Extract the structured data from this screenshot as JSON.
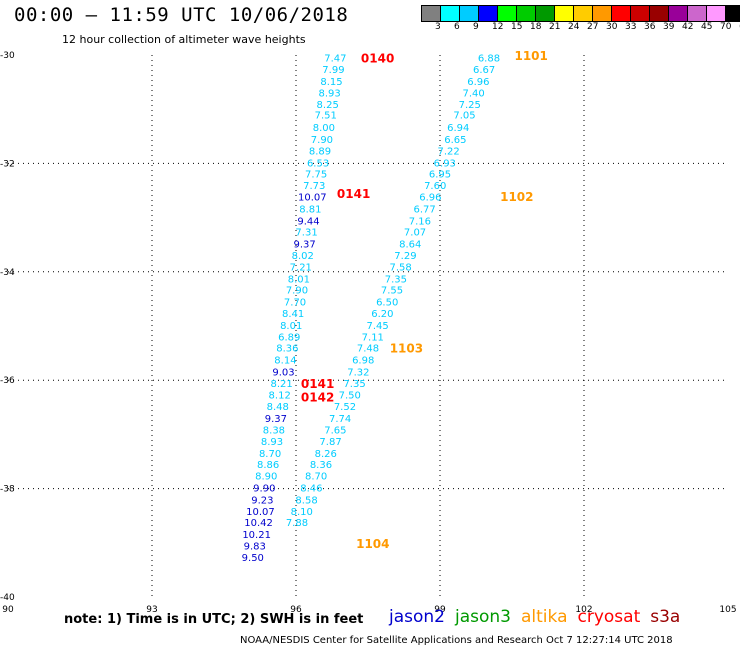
{
  "title": "00:00 – 11:59 UTC 10/06/2018",
  "subtitle": "12 hour collection of altimeter wave heights",
  "legend": {
    "colors": [
      "#808080",
      "#00ffff",
      "#00ccff",
      "#0000ff",
      "#00ff00",
      "#00cc00",
      "#009900",
      "#ffff00",
      "#ffcc00",
      "#ff9900",
      "#ff0000",
      "#cc0000",
      "#990000",
      "#990099",
      "#cc66cc",
      "#ff99ff",
      "#000000"
    ],
    "labels": [
      "3",
      "6",
      "9",
      "12",
      "15",
      "18",
      "21",
      "24",
      "27",
      "30",
      "33",
      "36",
      "39",
      "42",
      "45",
      "70",
      "(ft)"
    ]
  },
  "note": "note:  1) Time is in UTC;  2) SWH is in feet",
  "satellites": [
    {
      "name": "jason2",
      "color": "#0000cc"
    },
    {
      "name": "jason3",
      "color": "#009900"
    },
    {
      "name": "altika",
      "color": "#ff9900"
    },
    {
      "name": "cryosat",
      "color": "#ff0000"
    },
    {
      "name": "s3a",
      "color": "#990000"
    }
  ],
  "credit": "NOAA/NESDIS Center for Satellite Applications and Research    Oct  7 12:27:14 UTC 2018",
  "chart_data": {
    "type": "scatter",
    "xlim": [
      90,
      105
    ],
    "ylim": [
      -40,
      -30
    ],
    "xticks": [
      "90",
      "93",
      "96",
      "99",
      "102",
      "105"
    ],
    "yticks": [
      "-30",
      "-32",
      "-34",
      "-36",
      "-38",
      "-40"
    ],
    "grid": true,
    "colors": {
      "light_swh": "#00ccff",
      "dark_swh": "#0000cc",
      "altika_time": "#ff9900",
      "cryosat_time": "#ff0000"
    },
    "tracks": [
      {
        "name": "track-1",
        "color_key": "light_swh",
        "points": [
          {
            "lon": 100.02,
            "lat": -30.05,
            "swh": "6.88"
          },
          {
            "lon": 99.92,
            "lat": -30.26,
            "swh": "6.67"
          },
          {
            "lon": 99.8,
            "lat": -30.48,
            "swh": "6.96"
          },
          {
            "lon": 99.7,
            "lat": -30.69,
            "swh": "7.40"
          },
          {
            "lon": 99.62,
            "lat": -30.9,
            "swh": "7.25"
          },
          {
            "lon": 99.51,
            "lat": -31.1,
            "swh": "7.05"
          },
          {
            "lon": 99.38,
            "lat": -31.33,
            "swh": "6.94"
          },
          {
            "lon": 99.32,
            "lat": -31.55,
            "swh": "6.65"
          },
          {
            "lon": 99.18,
            "lat": -31.76,
            "swh": "7.22"
          },
          {
            "lon": 99.1,
            "lat": -31.98,
            "swh": "6.93"
          },
          {
            "lon": 99.0,
            "lat": -32.19,
            "swh": "6.95"
          },
          {
            "lon": 98.9,
            "lat": -32.4,
            "swh": "7.60"
          },
          {
            "lon": 98.8,
            "lat": -32.61,
            "swh": "6.96"
          },
          {
            "lon": 98.68,
            "lat": -32.83,
            "swh": "6.77"
          },
          {
            "lon": 98.58,
            "lat": -33.05,
            "swh": "7.16"
          },
          {
            "lon": 98.48,
            "lat": -33.26,
            "swh": "7.07"
          },
          {
            "lon": 98.38,
            "lat": -33.48,
            "swh": "8.64"
          },
          {
            "lon": 98.28,
            "lat": -33.69,
            "swh": "7.29"
          },
          {
            "lon": 98.18,
            "lat": -33.9,
            "swh": "7.58"
          },
          {
            "lon": 98.08,
            "lat": -34.12,
            "swh": "7.35"
          },
          {
            "lon": 98.0,
            "lat": -34.33,
            "swh": "7.55"
          },
          {
            "lon": 97.9,
            "lat": -34.55,
            "swh": "6.50"
          },
          {
            "lon": 97.8,
            "lat": -34.76,
            "swh": "6.20"
          },
          {
            "lon": 97.7,
            "lat": -34.98,
            "swh": "7.45"
          },
          {
            "lon": 97.6,
            "lat": -35.19,
            "swh": "7.11"
          },
          {
            "lon": 97.5,
            "lat": -35.4,
            "swh": "7.48"
          },
          {
            "lon": 97.4,
            "lat": -35.62,
            "swh": "6.98"
          },
          {
            "lon": 97.3,
            "lat": -35.84,
            "swh": "7.32"
          },
          {
            "lon": 97.22,
            "lat": -36.05,
            "swh": "7.35"
          },
          {
            "lon": 97.12,
            "lat": -36.26,
            "swh": "7.50"
          },
          {
            "lon": 97.02,
            "lat": -36.48,
            "swh": "7.52"
          },
          {
            "lon": 96.92,
            "lat": -36.7,
            "swh": "7.74"
          },
          {
            "lon": 96.82,
            "lat": -36.91,
            "swh": "7.65"
          },
          {
            "lon": 96.72,
            "lat": -37.12,
            "swh": "7.87"
          },
          {
            "lon": 96.62,
            "lat": -37.34,
            "swh": "8.26"
          },
          {
            "lon": 96.52,
            "lat": -37.55,
            "swh": "8.36"
          },
          {
            "lon": 96.42,
            "lat": -37.76,
            "swh": "8.70"
          },
          {
            "lon": 96.32,
            "lat": -37.98,
            "swh": "8.46"
          },
          {
            "lon": 96.22,
            "lat": -38.2,
            "swh": "8.58"
          },
          {
            "lon": 96.12,
            "lat": -38.41,
            "swh": "8.10"
          },
          {
            "lon": 96.02,
            "lat": -38.62,
            "swh": "7.88"
          }
        ]
      },
      {
        "name": "track-2",
        "points": [
          {
            "lon": 96.82,
            "lat": -30.05,
            "swh": "7.47",
            "color_key": "light_swh"
          },
          {
            "lon": 96.78,
            "lat": -30.26,
            "swh": "7.99",
            "color_key": "light_swh"
          },
          {
            "lon": 96.74,
            "lat": -30.48,
            "swh": "8.15",
            "color_key": "light_swh"
          },
          {
            "lon": 96.7,
            "lat": -30.69,
            "swh": "8.93",
            "color_key": "light_swh"
          },
          {
            "lon": 96.66,
            "lat": -30.9,
            "swh": "8.25",
            "color_key": "light_swh"
          },
          {
            "lon": 96.62,
            "lat": -31.1,
            "swh": "7.51",
            "color_key": "light_swh"
          },
          {
            "lon": 96.58,
            "lat": -31.33,
            "swh": "8.00",
            "color_key": "light_swh"
          },
          {
            "lon": 96.54,
            "lat": -31.55,
            "swh": "7.90",
            "color_key": "light_swh"
          },
          {
            "lon": 96.5,
            "lat": -31.76,
            "swh": "8.89",
            "color_key": "light_swh"
          },
          {
            "lon": 96.46,
            "lat": -31.98,
            "swh": "6.53",
            "color_key": "light_swh"
          },
          {
            "lon": 96.42,
            "lat": -32.19,
            "swh": "7.75",
            "color_key": "light_swh"
          },
          {
            "lon": 96.38,
            "lat": -32.4,
            "swh": "7.73",
            "color_key": "light_swh"
          },
          {
            "lon": 96.34,
            "lat": -32.61,
            "swh": "10.07",
            "color_key": "dark_swh"
          },
          {
            "lon": 96.3,
            "lat": -32.83,
            "swh": "8.81",
            "color_key": "light_swh"
          },
          {
            "lon": 96.26,
            "lat": -33.05,
            "swh": "9.44",
            "color_key": "dark_swh"
          },
          {
            "lon": 96.22,
            "lat": -33.26,
            "swh": "7.31",
            "color_key": "light_swh"
          },
          {
            "lon": 96.18,
            "lat": -33.48,
            "swh": "9.37",
            "color_key": "dark_swh"
          },
          {
            "lon": 96.14,
            "lat": -33.69,
            "swh": "8.02",
            "color_key": "light_swh"
          },
          {
            "lon": 96.1,
            "lat": -33.9,
            "swh": "7.21",
            "color_key": "light_swh"
          },
          {
            "lon": 96.06,
            "lat": -34.12,
            "swh": "8.01",
            "color_key": "light_swh"
          },
          {
            "lon": 96.02,
            "lat": -34.33,
            "swh": "7.90",
            "color_key": "light_swh"
          },
          {
            "lon": 95.98,
            "lat": -34.55,
            "swh": "7.70",
            "color_key": "light_swh"
          },
          {
            "lon": 95.94,
            "lat": -34.76,
            "swh": "8.41",
            "color_key": "light_swh"
          },
          {
            "lon": 95.9,
            "lat": -34.98,
            "swh": "8.01",
            "color_key": "light_swh"
          },
          {
            "lon": 95.86,
            "lat": -35.19,
            "swh": "6.89",
            "color_key": "light_swh"
          },
          {
            "lon": 95.82,
            "lat": -35.4,
            "swh": "8.36",
            "color_key": "light_swh"
          },
          {
            "lon": 95.78,
            "lat": -35.62,
            "swh": "8.14",
            "color_key": "light_swh"
          },
          {
            "lon": 95.74,
            "lat": -35.84,
            "swh": "9.03",
            "color_key": "dark_swh"
          },
          {
            "lon": 95.7,
            "lat": -36.05,
            "swh": "8.21",
            "color_key": "light_swh"
          },
          {
            "lon": 95.66,
            "lat": -36.26,
            "swh": "8.12",
            "color_key": "light_swh"
          },
          {
            "lon": 95.62,
            "lat": -36.48,
            "swh": "8.48",
            "color_key": "light_swh"
          },
          {
            "lon": 95.58,
            "lat": -36.7,
            "swh": "9.37",
            "color_key": "dark_swh"
          },
          {
            "lon": 95.54,
            "lat": -36.91,
            "swh": "8.38",
            "color_key": "light_swh"
          },
          {
            "lon": 95.5,
            "lat": -37.12,
            "swh": "8.93",
            "color_key": "light_swh"
          },
          {
            "lon": 95.46,
            "lat": -37.34,
            "swh": "8.70",
            "color_key": "light_swh"
          },
          {
            "lon": 95.42,
            "lat": -37.55,
            "swh": "8.86",
            "color_key": "light_swh"
          },
          {
            "lon": 95.38,
            "lat": -37.76,
            "swh": "8.90",
            "color_key": "light_swh"
          },
          {
            "lon": 95.34,
            "lat": -37.98,
            "swh": "9.90",
            "color_key": "dark_swh"
          },
          {
            "lon": 95.3,
            "lat": -38.2,
            "swh": "9.23",
            "color_key": "dark_swh"
          },
          {
            "lon": 95.26,
            "lat": -38.41,
            "swh": "10.07",
            "color_key": "dark_swh"
          },
          {
            "lon": 95.22,
            "lat": -38.62,
            "swh": "10.42",
            "color_key": "dark_swh"
          },
          {
            "lon": 95.18,
            "lat": -38.84,
            "swh": "10.21",
            "color_key": "dark_swh"
          },
          {
            "lon": 95.14,
            "lat": -39.05,
            "swh": "9.83",
            "color_key": "dark_swh"
          },
          {
            "lon": 95.1,
            "lat": -39.26,
            "swh": "9.50",
            "color_key": "dark_swh"
          }
        ]
      }
    ],
    "time_labels": [
      {
        "text": "0140",
        "lon": 97.7,
        "lat": -30.05,
        "color_key": "cryosat_time"
      },
      {
        "text": "0141",
        "lon": 97.2,
        "lat": -32.55,
        "color_key": "cryosat_time"
      },
      {
        "text": "0141",
        "lon": 96.45,
        "lat": -36.05,
        "color_key": "cryosat_time"
      },
      {
        "text": "0142",
        "lon": 96.45,
        "lat": -36.3,
        "color_key": "cryosat_time"
      },
      {
        "text": "1101",
        "lon": 100.9,
        "lat": -30.0,
        "color_key": "altika_time"
      },
      {
        "text": "1102",
        "lon": 100.6,
        "lat": -32.6,
        "color_key": "altika_time"
      },
      {
        "text": "1103",
        "lon": 98.3,
        "lat": -35.4,
        "color_key": "altika_time"
      },
      {
        "text": "1104",
        "lon": 97.6,
        "lat": -39.0,
        "color_key": "altika_time"
      }
    ]
  }
}
